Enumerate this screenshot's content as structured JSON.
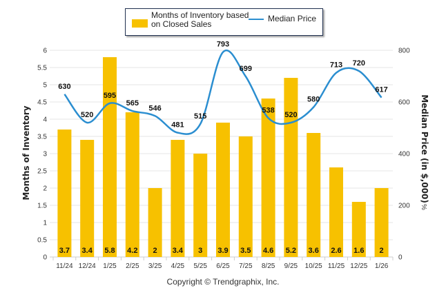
{
  "chart_data": {
    "type": "bar",
    "title": "",
    "categories": [
      "11/24",
      "12/24",
      "1/25",
      "2/25",
      "3/25",
      "4/25",
      "5/25",
      "6/25",
      "7/25",
      "8/25",
      "9/25",
      "10/25",
      "11/25",
      "12/25",
      "1/26"
    ],
    "series": [
      {
        "name": "Months of Inventory based on Closed Sales",
        "type": "bar",
        "axis": "left",
        "color": "#F7C100",
        "values": [
          3.7,
          3.4,
          5.8,
          4.2,
          2,
          3.4,
          3,
          3.9,
          3.5,
          4.6,
          5.2,
          3.6,
          2.6,
          1.6,
          2
        ],
        "labels": [
          "3.7",
          "3.4",
          "5.8",
          "4.2",
          "2",
          "3.4",
          "3",
          "3.9",
          "3.5",
          "4.6",
          "5.2",
          "3.6",
          "2.6",
          "1.6",
          "2"
        ]
      },
      {
        "name": "Median Price",
        "type": "line",
        "axis": "right",
        "color": "#2B8ED0",
        "values": [
          630,
          520,
          595,
          565,
          546,
          481,
          515,
          793,
          699,
          538,
          520,
          580,
          713,
          720,
          617
        ],
        "labels": [
          "630",
          "520",
          "595",
          "565",
          "546",
          "481",
          "515",
          "793",
          "699",
          "538",
          "520",
          "580",
          "713",
          "720",
          "617"
        ]
      }
    ],
    "left_axis": {
      "label": "Months of Inventory",
      "ylim": [
        0,
        6
      ],
      "ticks": [
        "0",
        "0.5",
        "1",
        "1.5",
        "2",
        "2.5",
        "3",
        "3.5",
        "4",
        "4.5",
        "5",
        "5.5",
        "6"
      ],
      "tick_values": [
        0,
        0.5,
        1,
        1.5,
        2,
        2.5,
        3,
        3.5,
        4,
        4.5,
        5,
        5.5,
        6
      ]
    },
    "right_axis": {
      "label": "Median Price (in $,000)",
      "label_suffix": "%",
      "ylim": [
        0,
        800
      ],
      "ticks": [
        "0",
        "200",
        "400",
        "600",
        "800"
      ],
      "tick_values": [
        0,
        200,
        400,
        600,
        800
      ]
    },
    "grid": true,
    "legend": {
      "position": "top-center",
      "entries": [
        {
          "label_line1": "Months of Inventory based",
          "label_line2": "on Closed Sales",
          "kind": "bar"
        },
        {
          "label": "Median Price",
          "kind": "line"
        }
      ]
    }
  },
  "footer": {
    "copyright": "Copyright © Trendgraphix, Inc."
  }
}
